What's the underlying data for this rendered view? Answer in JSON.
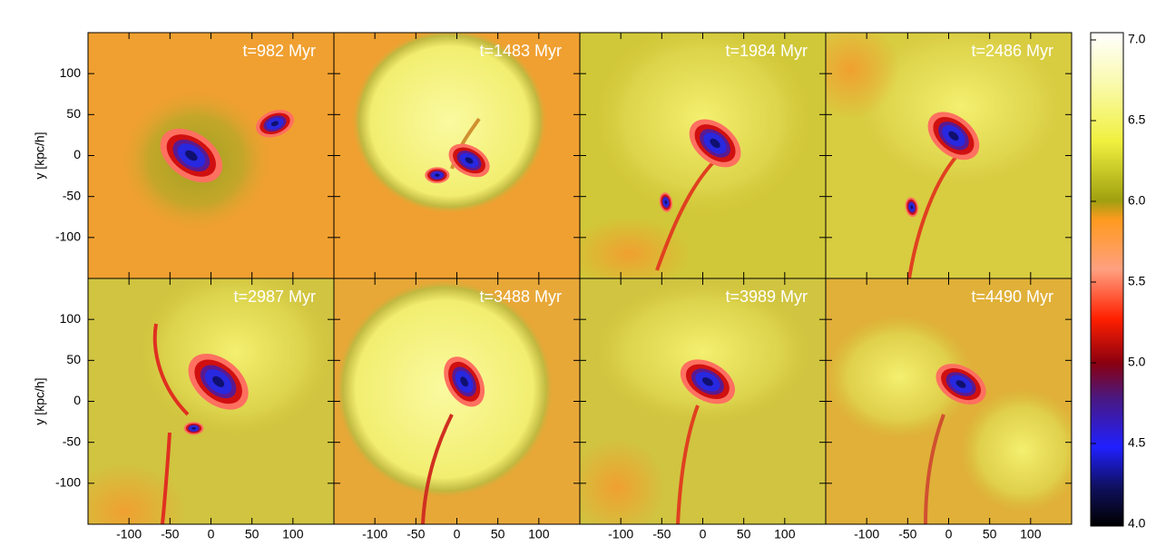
{
  "chart_data": [
    {
      "type": "heatmap",
      "title": "t=982 Myr",
      "ylabel": "y [kpc/h]",
      "xlim": [
        -150,
        150
      ],
      "ylim": [
        -150,
        150
      ],
      "xticks": [
        -100,
        -50,
        0,
        50,
        100
      ],
      "yticks": [
        -100,
        -50,
        0,
        50,
        100
      ]
    },
    {
      "type": "heatmap",
      "title": "t=1483 Myr",
      "xlim": [
        -150,
        150
      ],
      "ylim": [
        -150,
        150
      ],
      "xticks": [
        -100,
        -50,
        0,
        50,
        100
      ],
      "yticks": [
        -100,
        -50,
        0,
        50,
        100
      ]
    },
    {
      "type": "heatmap",
      "title": "t=1984 Myr",
      "xlim": [
        -150,
        150
      ],
      "ylim": [
        -150,
        150
      ],
      "xticks": [
        -100,
        -50,
        0,
        50,
        100
      ],
      "yticks": [
        -100,
        -50,
        0,
        50,
        100
      ]
    },
    {
      "type": "heatmap",
      "title": "t=2486 Myr",
      "xlim": [
        -150,
        150
      ],
      "ylim": [
        -150,
        150
      ],
      "xticks": [
        -100,
        -50,
        0,
        50,
        100
      ],
      "yticks": [
        -100,
        -50,
        0,
        50,
        100
      ]
    },
    {
      "type": "heatmap",
      "title": "t=2987 Myr",
      "ylabel": "y [kpc/h]",
      "xlim": [
        -150,
        150
      ],
      "ylim": [
        -150,
        150
      ],
      "xticks": [
        -100,
        -50,
        0,
        50,
        100
      ],
      "yticks": [
        -100,
        -50,
        0,
        50,
        100
      ]
    },
    {
      "type": "heatmap",
      "title": "t=3488 Myr",
      "xlim": [
        -150,
        150
      ],
      "ylim": [
        -150,
        150
      ],
      "xticks": [
        -100,
        -50,
        0,
        50,
        100
      ],
      "yticks": [
        -100,
        -50,
        0,
        50,
        100
      ]
    },
    {
      "type": "heatmap",
      "title": "t=3989 Myr",
      "xlim": [
        -150,
        150
      ],
      "ylim": [
        -150,
        150
      ],
      "xticks": [
        -100,
        -50,
        0,
        50,
        100
      ],
      "yticks": [
        -100,
        -50,
        0,
        50,
        100
      ]
    },
    {
      "type": "heatmap",
      "title": "t=4490 Myr",
      "xlim": [
        -150,
        150
      ],
      "ylim": [
        -150,
        150
      ],
      "xticks": [
        -100,
        -50,
        0,
        50,
        100
      ],
      "yticks": [
        -100,
        -50,
        0,
        50,
        100
      ]
    }
  ],
  "colorbar": {
    "lim": [
      4,
      7
    ],
    "ticks": [
      {
        "value": 4,
        "label": "4.0"
      },
      {
        "value": 4.5,
        "label": "4.5"
      },
      {
        "value": 5,
        "label": "5.0"
      },
      {
        "value": 5.5,
        "label": "5.5"
      },
      {
        "value": 6,
        "label": "6.0"
      },
      {
        "value": 6.5,
        "label": "6.5"
      },
      {
        "value": 7,
        "label": "7.0"
      }
    ]
  }
}
